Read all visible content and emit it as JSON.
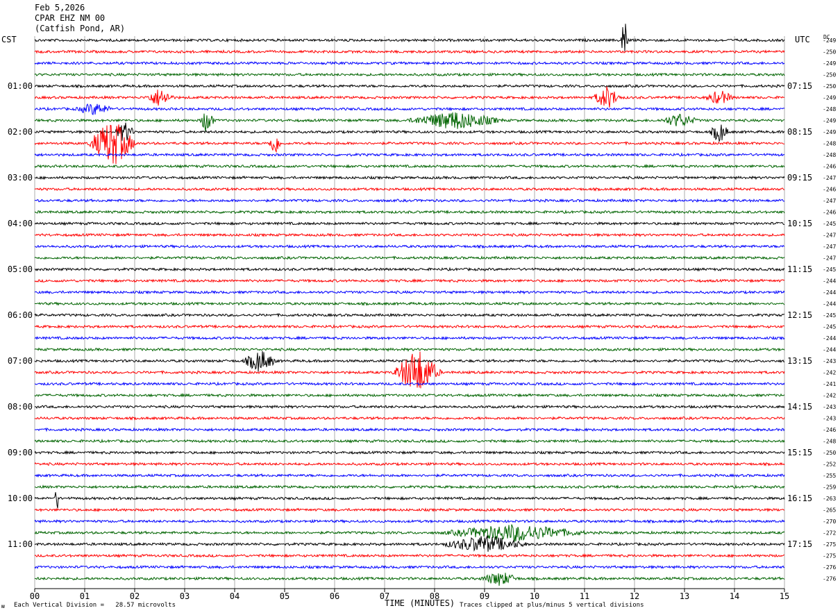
{
  "header": {
    "date": "Feb 5,2026",
    "station": "CPAR EHZ NM 00",
    "location": "(Catfish Pond, AR)"
  },
  "labels": {
    "left_zone": "CST",
    "right_zone": "UTC",
    "dc": "DC",
    "footer_scale": "Each Vertical Division =   28.57 microvolts",
    "footer_clip": "Traces clipped at plus/minus 5 vertical divisions"
  },
  "chart_data": {
    "type": "line",
    "xlabel": "TIME (MINUTES)",
    "xlim": [
      0,
      15
    ],
    "x_ticks": [
      "00",
      "01",
      "02",
      "03",
      "04",
      "05",
      "06",
      "07",
      "08",
      "09",
      "10",
      "11",
      "12",
      "13",
      "14",
      "15"
    ],
    "trace_colors": [
      "#000000",
      "#ff0000",
      "#0000ff",
      "#006400"
    ],
    "left_time_labels": [
      "01:00",
      "02:00",
      "03:00",
      "04:00",
      "05:00",
      "06:00",
      "07:00",
      "08:00",
      "09:00",
      "10:00",
      "11:00"
    ],
    "right_time_labels": [
      "07:15",
      "08:15",
      "09:15",
      "10:15",
      "11:15",
      "12:15",
      "13:15",
      "14:15",
      "15:15",
      "16:15",
      "17:15"
    ],
    "dc_offsets": [
      -249,
      -250,
      -249,
      -250,
      -250,
      -249,
      -248,
      -249,
      -249,
      -248,
      -248,
      -246,
      -247,
      -246,
      -247,
      -246,
      -245,
      -247,
      -247,
      -247,
      -245,
      -244,
      -244,
      -244,
      -245,
      -245,
      -244,
      -244,
      -243,
      -242,
      -241,
      -242,
      -243,
      -243,
      -246,
      -248,
      -250,
      -252,
      -255,
      -259,
      -263,
      -265,
      -270,
      -272,
      -275,
      -275,
      -276,
      -276
    ],
    "events": [
      {
        "row": 0,
        "t": 11.8,
        "amp": 4,
        "dur": 0.08
      },
      {
        "row": 5,
        "t": 2.5,
        "amp": 1.3,
        "dur": 0.3
      },
      {
        "row": 5,
        "t": 11.45,
        "amp": 1.6,
        "dur": 0.3
      },
      {
        "row": 5,
        "t": 13.7,
        "amp": 1.0,
        "dur": 0.3
      },
      {
        "row": 6,
        "t": 1.2,
        "amp": 0.8,
        "dur": 0.4
      },
      {
        "row": 7,
        "t": 3.45,
        "amp": 2.0,
        "dur": 0.15
      },
      {
        "row": 7,
        "t": 8.4,
        "amp": 1.3,
        "dur": 1.0
      },
      {
        "row": 7,
        "t": 12.9,
        "amp": 0.9,
        "dur": 0.4
      },
      {
        "row": 8,
        "t": 1.8,
        "amp": 1.5,
        "dur": 0.2
      },
      {
        "row": 8,
        "t": 13.7,
        "amp": 1.5,
        "dur": 0.2
      },
      {
        "row": 9,
        "t": 1.55,
        "amp": 3.5,
        "dur": 0.5
      },
      {
        "row": 9,
        "t": 4.8,
        "amp": 1.6,
        "dur": 0.15
      },
      {
        "row": 28,
        "t": 4.5,
        "amp": 1.6,
        "dur": 0.35
      },
      {
        "row": 29,
        "t": 7.65,
        "amp": 3.4,
        "dur": 0.5
      },
      {
        "row": 44,
        "t": 9.0,
        "amp": 1.2,
        "dur": 0.9
      },
      {
        "row": 43,
        "t": 9.6,
        "amp": 1.2,
        "dur": 1.5
      },
      {
        "row": 40,
        "t": 0.45,
        "amp": 2.2,
        "dur": 0.05
      },
      {
        "row": 47,
        "t": 9.3,
        "amp": 1.0,
        "dur": 0.4
      }
    ]
  }
}
